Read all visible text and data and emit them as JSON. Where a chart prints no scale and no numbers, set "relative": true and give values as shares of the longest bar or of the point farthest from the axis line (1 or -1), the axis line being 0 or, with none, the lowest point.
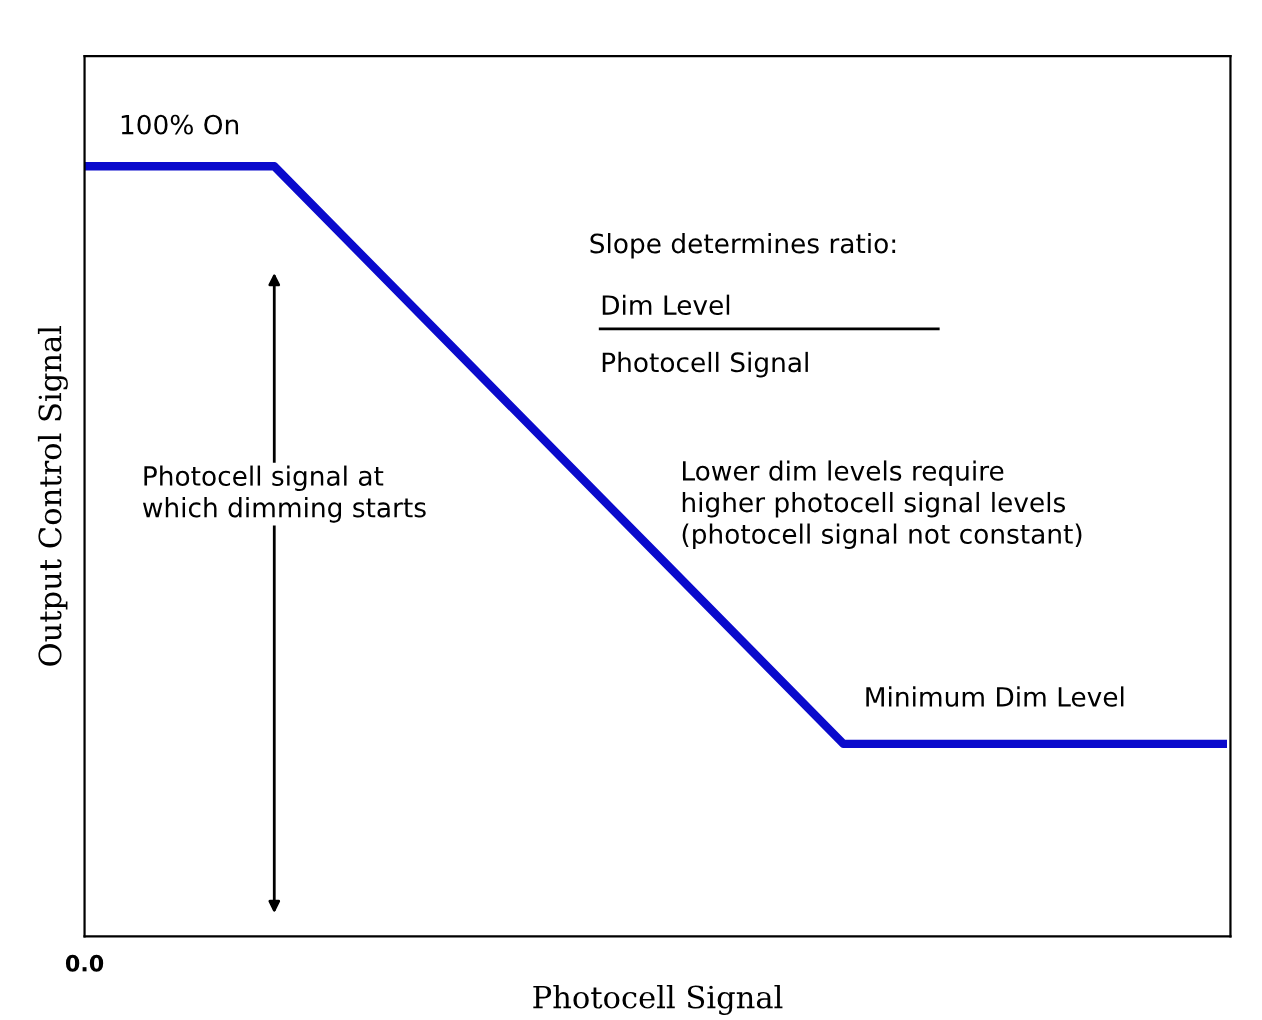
{
  "chart_data": {
    "type": "line",
    "relative": true,
    "xlabel": "Photocell Signal",
    "ylabel": "Output Control Signal",
    "categories": [
      null,
      null,
      null,
      null,
      null,
      null,
      null
    ],
    "series": [
      {
        "color": "#0a0acc",
        "values": [
          1,
          1,
          0.75,
          0.5,
          0.25,
          0.25,
          0.25
        ]
      }
    ],
    "annotations": [
      "0.0",
      "100% On",
      "Slope determines ratio:",
      "Dim Level",
      "Photocell Signal",
      "Photocell signal at\nwhich dimming starts",
      "Lower dim levels require\nhigher photocell signal levels\n(photocell signal not constant)",
      "Minimum Dim Level"
    ],
    "legend": false,
    "marker": "none",
    "line_style": "solid"
  }
}
